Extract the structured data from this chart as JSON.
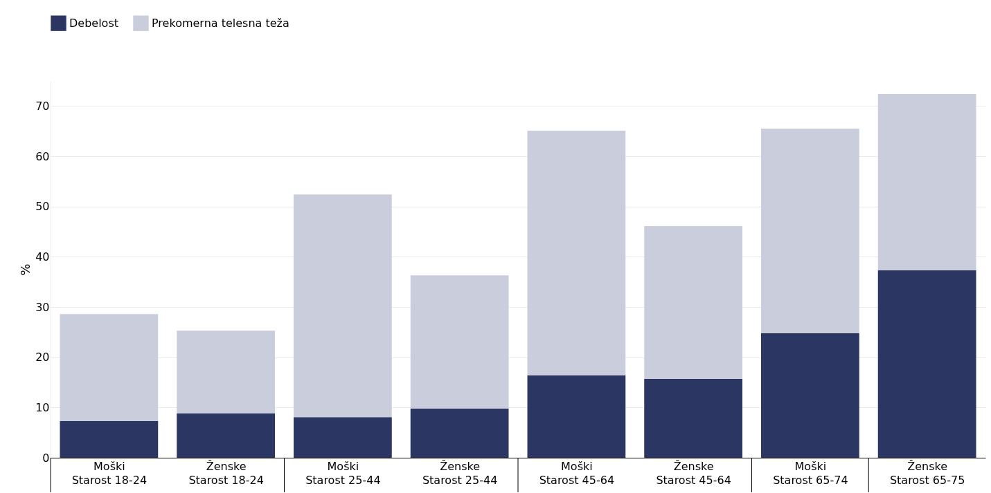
{
  "chart_data": {
    "type": "bar",
    "stacked": true,
    "ylabel": "%",
    "legend": "top left",
    "grid": "y",
    "categories": [
      "Moški\nStarost 18-24",
      "Ženske\nStarost 18-24",
      "Moški\nStarost 25-44",
      "Ženske\nStarost 25-44",
      "Moški\nStarost 45-64",
      "Ženske\nStarost 45-64",
      "Moški\nStarost 65-74",
      "Ženske\nStarost 65-75"
    ],
    "series": [
      {
        "name": "Debelost",
        "color": "#2b3663",
        "values": [
          7.3,
          8.8,
          8.1,
          9.8,
          16.4,
          15.7,
          24.8,
          37.3
        ]
      },
      {
        "name": "Prekomerna telesna teža",
        "color": "#cacddb",
        "values": [
          21.3,
          16.5,
          44.3,
          26.5,
          48.7,
          30.4,
          40.7,
          35.1
        ]
      }
    ],
    "ylim": [
      0,
      75
    ],
    "yticks": [
      0,
      10,
      20,
      30,
      40,
      50,
      60,
      70
    ]
  }
}
